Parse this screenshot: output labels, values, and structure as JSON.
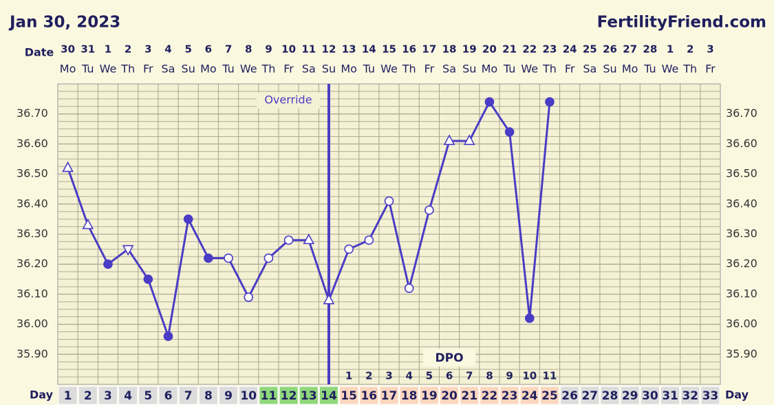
{
  "chart_data": {
    "type": "line",
    "title": "Jan 30, 2023",
    "site": "FertilityFriend.com",
    "date_label": "Date",
    "day_label": "Day",
    "dpo_label": "DPO",
    "x": [
      1,
      2,
      3,
      4,
      5,
      6,
      7,
      8,
      9,
      10,
      11,
      12,
      13,
      14,
      15,
      16,
      17,
      18,
      19,
      20,
      21,
      22,
      23,
      24,
      25,
      26,
      27,
      28,
      29,
      30,
      31,
      32,
      33
    ],
    "dates": [
      "30",
      "31",
      "1",
      "2",
      "3",
      "4",
      "5",
      "6",
      "7",
      "8",
      "9",
      "10",
      "11",
      "12",
      "13",
      "14",
      "15",
      "16",
      "17",
      "18",
      "19",
      "20",
      "21",
      "22",
      "23",
      "24",
      "25",
      "26",
      "27",
      "28",
      "1",
      "2",
      "3"
    ],
    "weekdays": [
      "Mo",
      "Tu",
      "We",
      "Th",
      "Fr",
      "Sa",
      "Su",
      "Mo",
      "Tu",
      "We",
      "Th",
      "Fr",
      "Sa",
      "Su",
      "Mo",
      "Tu",
      "We",
      "Th",
      "Fr",
      "Sa",
      "Su",
      "Mo",
      "Tu",
      "We",
      "Th",
      "Fr",
      "Sa",
      "Su",
      "Mo",
      "Tu",
      "We",
      "Th",
      "Fr"
    ],
    "values": [
      36.52,
      36.33,
      36.2,
      36.25,
      36.15,
      35.96,
      36.35,
      36.22,
      36.22,
      36.09,
      36.22,
      36.28,
      36.28,
      36.08,
      36.25,
      36.28,
      36.41,
      36.12,
      36.38,
      36.61,
      36.61,
      36.74,
      36.64,
      36.02,
      36.74,
      null,
      null,
      null,
      null,
      null,
      null,
      null,
      null
    ],
    "markers": [
      "triangle",
      "triangle",
      "filled",
      "triangle-down",
      "filled",
      "filled",
      "filled",
      "filled",
      "open",
      "open",
      "open",
      "open",
      "triangle",
      "triangle",
      "open",
      "open",
      "open",
      "open",
      "open",
      "triangle",
      "triangle",
      "filled",
      "filled",
      "filled",
      "filled",
      null,
      null,
      null,
      null,
      null,
      null,
      null,
      null
    ],
    "dpo": [
      null,
      null,
      null,
      null,
      null,
      null,
      null,
      null,
      null,
      null,
      null,
      null,
      null,
      null,
      1,
      2,
      3,
      4,
      5,
      6,
      7,
      8,
      9,
      10,
      11,
      null,
      null,
      null,
      null,
      null,
      null,
      null,
      null
    ],
    "color": "#4a3cc4",
    "xlim": [
      0.5,
      33.5
    ],
    "ylim": [
      35.8,
      36.8
    ],
    "yticks": [
      {
        "value": 35.9,
        "label": "35.90"
      },
      {
        "value": 36.0,
        "label": "36.00"
      },
      {
        "value": 36.1,
        "label": "36.10"
      },
      {
        "value": 36.2,
        "label": "36.20"
      },
      {
        "value": 36.3,
        "label": "36.30"
      },
      {
        "value": 36.4,
        "label": "36.40"
      },
      {
        "value": 36.5,
        "label": "36.50"
      },
      {
        "value": 36.6,
        "label": "36.60"
      },
      {
        "value": 36.7,
        "label": "36.70"
      }
    ],
    "grid_step": 0.025,
    "override": {
      "label": "Override",
      "x": 14
    },
    "day_color": "#dcdcdc",
    "phases": [
      {
        "from": 11,
        "to": 14,
        "color": "#8fd77c"
      },
      {
        "from": 15,
        "to": 25,
        "color": "#fbd6bf"
      }
    ]
  }
}
